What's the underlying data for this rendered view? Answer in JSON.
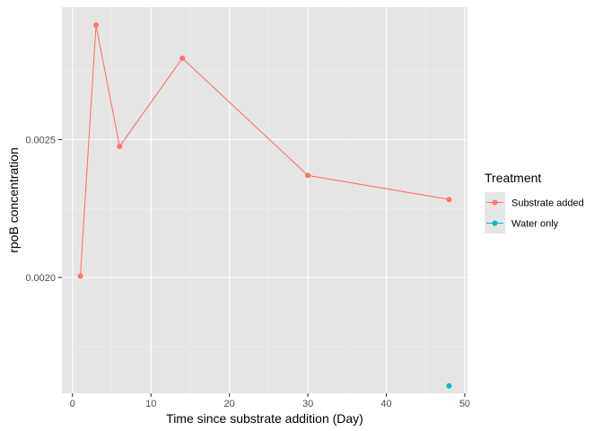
{
  "chart_data": {
    "type": "line",
    "xlabel": "Time since substrate addition (Day)",
    "ylabel": "rpoB concentration",
    "xlim": [
      -1.35,
      50.35
    ],
    "ylim": [
      0.00158,
      0.00298
    ],
    "x_ticks": [
      0,
      10,
      20,
      30,
      40,
      50
    ],
    "y_ticks": [
      0.002,
      0.0025
    ],
    "y_tick_labels": [
      "0.0020",
      "0.0025"
    ],
    "grid": true,
    "panel_background": "#e5e5e5",
    "legend": {
      "title": "Treatment",
      "placement": "right"
    },
    "series": [
      {
        "name": "Substrate added",
        "color": "#F8766D",
        "connected": true,
        "points": [
          {
            "x": 1,
            "y": 0.002005
          },
          {
            "x": 3,
            "y": 0.002915
          },
          {
            "x": 6,
            "y": 0.002475
          },
          {
            "x": 14,
            "y": 0.002795
          },
          {
            "x": 30,
            "y": 0.00237
          },
          {
            "x": 48,
            "y": 0.002283
          }
        ]
      },
      {
        "name": "Water only",
        "color": "#00BFC4",
        "connected": true,
        "points": [
          {
            "x": 48,
            "y": 0.001607
          }
        ]
      }
    ]
  }
}
